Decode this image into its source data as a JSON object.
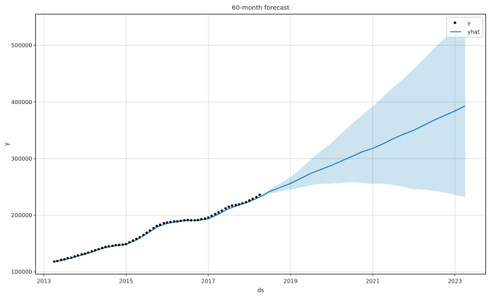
{
  "chart_data": {
    "type": "line",
    "title": "60-month forecast",
    "xlabel": "ds",
    "ylabel": "y",
    "xlim": [
      2012.8,
      2023.75
    ],
    "ylim": [
      96000,
      555000
    ],
    "x_ticks": [
      2013,
      2015,
      2017,
      2019,
      2021,
      2023
    ],
    "y_ticks": [
      100000,
      200000,
      300000,
      400000,
      500000
    ],
    "y_tick_labels": [
      "100000",
      "200000",
      "300000",
      "400000",
      "500000"
    ],
    "grid": true,
    "legend": {
      "placement": "top-right",
      "entries": [
        {
          "label": "y",
          "marker": "dot"
        },
        {
          "label": "yhat",
          "marker": "line"
        }
      ]
    },
    "colors": {
      "observed": "#000000",
      "yhat": "#0072B2",
      "interval": "#0072B2",
      "interval_opacity": 0.2,
      "grid": "#d9d9d9",
      "frame": "#333333"
    },
    "observed": {
      "name": "y",
      "x": [
        2013.25,
        2013.33,
        2013.42,
        2013.5,
        2013.58,
        2013.67,
        2013.75,
        2013.83,
        2013.92,
        2014.0,
        2014.08,
        2014.17,
        2014.25,
        2014.33,
        2014.42,
        2014.5,
        2014.58,
        2014.67,
        2014.75,
        2014.83,
        2014.92,
        2015.0,
        2015.08,
        2015.17,
        2015.25,
        2015.33,
        2015.42,
        2015.5,
        2015.58,
        2015.67,
        2015.75,
        2015.83,
        2015.92,
        2016.0,
        2016.08,
        2016.17,
        2016.25,
        2016.33,
        2016.42,
        2016.5,
        2016.58,
        2016.67,
        2016.75,
        2016.83,
        2016.92,
        2017.0,
        2017.08,
        2017.17,
        2017.25,
        2017.33,
        2017.42,
        2017.5,
        2017.58,
        2017.67,
        2017.75,
        2017.83,
        2017.92,
        2018.0,
        2018.08,
        2018.17,
        2018.25
      ],
      "values": [
        118000,
        119000,
        121000,
        122000,
        124000,
        125000,
        127000,
        129000,
        131000,
        132000,
        134000,
        136000,
        138000,
        140000,
        142000,
        144000,
        145000,
        146000,
        147000,
        147500,
        148000,
        149000,
        152000,
        155000,
        158000,
        161000,
        165000,
        169000,
        173000,
        177000,
        181000,
        183000,
        186000,
        187000,
        188000,
        189000,
        189000,
        190000,
        191000,
        191500,
        191000,
        191000,
        191500,
        193000,
        194000,
        196000,
        199000,
        202000,
        205000,
        208000,
        212000,
        215000,
        217000,
        218000,
        219000,
        221000,
        223000,
        226000,
        229000,
        232000,
        236000
      ]
    },
    "forecast": {
      "name": "yhat",
      "x": [
        2013.25,
        2013.5,
        2013.75,
        2014.0,
        2014.25,
        2014.5,
        2014.75,
        2015.0,
        2015.25,
        2015.5,
        2015.75,
        2016.0,
        2016.25,
        2016.5,
        2016.75,
        2017.0,
        2017.25,
        2017.5,
        2017.75,
        2018.0,
        2018.25,
        2018.5,
        2018.75,
        2019.0,
        2019.25,
        2019.5,
        2019.75,
        2020.0,
        2020.25,
        2020.5,
        2020.75,
        2021.0,
        2021.25,
        2021.5,
        2021.75,
        2022.0,
        2022.25,
        2022.5,
        2022.75,
        2023.0,
        2023.25
      ],
      "values": [
        118000,
        121500,
        126000,
        131000,
        137000,
        143000,
        146000,
        148500,
        156000,
        167000,
        179000,
        185500,
        188500,
        191000,
        190500,
        193500,
        202000,
        211500,
        218000,
        224000,
        232000,
        242000,
        249000,
        256000,
        265000,
        274000,
        281000,
        288000,
        296000,
        304000,
        312000,
        318000,
        326000,
        335000,
        343000,
        350000,
        359000,
        368000,
        376000,
        384000,
        393000
      ],
      "lower": [
        117000,
        120500,
        125000,
        130000,
        136000,
        142000,
        145000,
        147500,
        155000,
        166000,
        178000,
        184500,
        187500,
        190000,
        189500,
        192500,
        201000,
        210500,
        217000,
        223000,
        231000,
        238000,
        242000,
        245000,
        249000,
        253000,
        255000,
        256000,
        257000,
        258000,
        257000,
        255000,
        256000,
        253000,
        250000,
        246000,
        245000,
        243000,
        240000,
        236000,
        232000
      ],
      "upper": [
        119000,
        122500,
        127000,
        132000,
        138000,
        144000,
        147000,
        149500,
        157000,
        168000,
        180000,
        186500,
        189500,
        192000,
        191500,
        194500,
        203000,
        212500,
        219000,
        225000,
        233000,
        246000,
        256000,
        267000,
        282000,
        299000,
        314000,
        328000,
        345000,
        362000,
        377000,
        392000,
        409000,
        426000,
        441000,
        458000,
        476000,
        495000,
        512000,
        530000,
        548000
      ]
    }
  }
}
